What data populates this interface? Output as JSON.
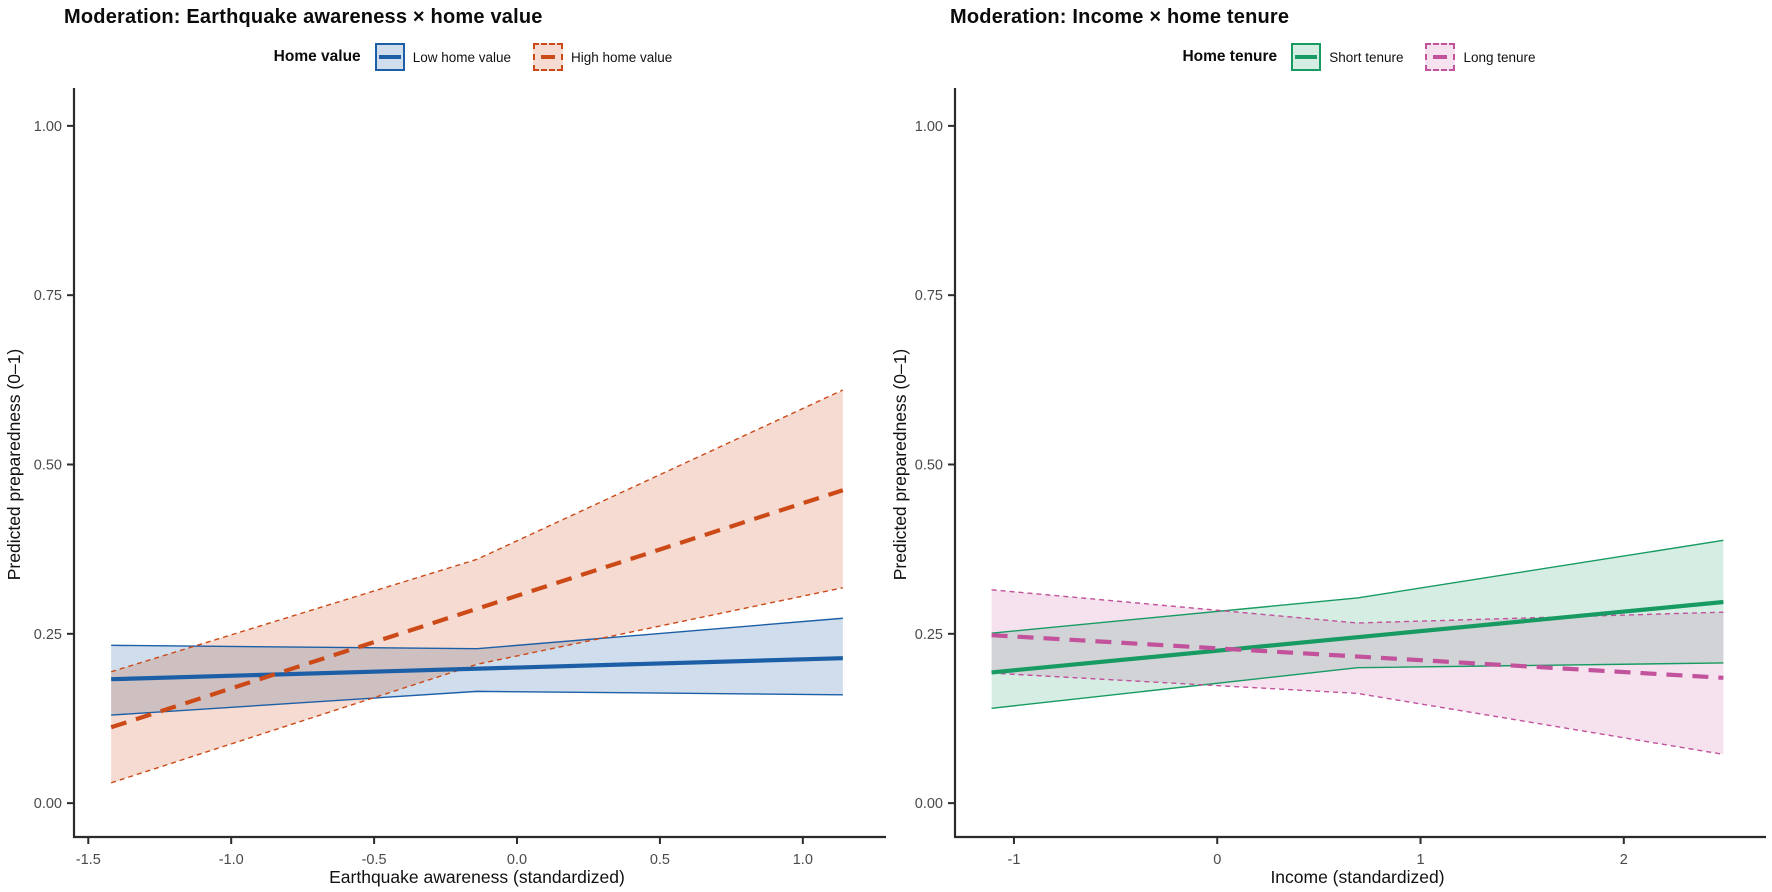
{
  "chart_data": [
    {
      "type": "line",
      "title": "Moderation: Earthquake awareness × home value",
      "legend_title": "Home value",
      "legend_position": "top-center",
      "xlabel": "Earthquake awareness (standardized)",
      "ylabel": "Predicted preparedness (0–1)",
      "xlim": [
        -1.55,
        1.27
      ],
      "ylim": [
        -0.05,
        1.05
      ],
      "grid": false,
      "x_ticks": [
        -1.5,
        -1.0,
        -0.5,
        0.0,
        0.5,
        1.0
      ],
      "x_tick_labels": [
        "-1.5",
        "-1.0",
        "-0.5",
        "0.0",
        "0.5",
        "1.0"
      ],
      "y_ticks": [
        0.0,
        0.25,
        0.5,
        0.75,
        1.0
      ],
      "y_tick_labels": [
        "0.00",
        "0.25",
        "0.50",
        "0.75",
        "1.00"
      ],
      "series": [
        {
          "name": "Low home value",
          "style": "solid",
          "color": "#1d5fa6",
          "fill": "rgba(29,95,166,0.21)",
          "line": {
            "x": [
              -1.42,
              1.14
            ],
            "y": [
              0.183,
              0.214
            ]
          },
          "ci": {
            "x": [
              -1.42,
              -0.14,
              1.14
            ],
            "upper": [
              0.233,
              0.228,
              0.273
            ],
            "lower": [
              0.13,
              0.165,
              0.16
            ]
          }
        },
        {
          "name": "High home value",
          "style": "dashed",
          "color": "#cc4a18",
          "fill": "rgba(204,74,24,0.20)",
          "line": {
            "x": [
              -1.42,
              1.14
            ],
            "y": [
              0.112,
              0.462
            ]
          },
          "ci": {
            "x": [
              -1.42,
              -0.14,
              1.14
            ],
            "upper": [
              0.194,
              0.36,
              0.61
            ],
            "lower": [
              0.03,
              0.205,
              0.318
            ]
          }
        }
      ]
    },
    {
      "type": "line",
      "title": "Moderation: Income × home tenure",
      "legend_title": "Home tenure",
      "legend_position": "top-center",
      "xlabel": "Income (standardized)",
      "ylabel": "Predicted preparedness (0–1)",
      "xlim": [
        -1.29,
        2.67
      ],
      "ylim": [
        -0.05,
        1.05
      ],
      "grid": false,
      "x_ticks": [
        -1,
        0,
        1,
        2
      ],
      "x_tick_labels": [
        "-1",
        "0",
        "1",
        "2"
      ],
      "y_ticks": [
        0.0,
        0.25,
        0.5,
        0.75,
        1.0
      ],
      "y_tick_labels": [
        "0.00",
        "0.25",
        "0.50",
        "0.75",
        "1.00"
      ],
      "series": [
        {
          "name": "Short tenure",
          "style": "solid",
          "color": "#189b62",
          "fill": "rgba(24,155,98,0.18)",
          "line": {
            "x": [
              -1.11,
              2.49
            ],
            "y": [
              0.193,
              0.297
            ]
          },
          "ci": {
            "x": [
              -1.11,
              0.69,
              2.49
            ],
            "upper": [
              0.251,
              0.303,
              0.388
            ],
            "lower": [
              0.14,
              0.2,
              0.207
            ]
          }
        },
        {
          "name": "Long tenure",
          "style": "dashed",
          "color": "#c2529c",
          "fill": "rgba(194,82,156,0.17)",
          "line": {
            "x": [
              -1.11,
              2.49
            ],
            "y": [
              0.248,
              0.185
            ]
          },
          "ci": {
            "x": [
              -1.11,
              0.69,
              2.49
            ],
            "upper": [
              0.315,
              0.266,
              0.282
            ],
            "lower": [
              0.192,
              0.162,
              0.072
            ]
          }
        }
      ]
    }
  ]
}
